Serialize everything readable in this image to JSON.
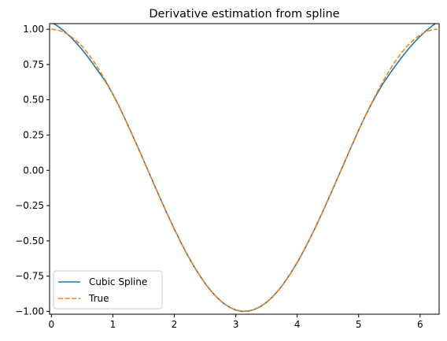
{
  "chart_data": {
    "type": "line",
    "title": "Derivative estimation from spline",
    "xlabel": "",
    "ylabel": "",
    "xlim": [
      -0.03,
      6.31
    ],
    "ylim": [
      -1.02,
      1.04
    ],
    "xticks": [
      0,
      1,
      2,
      3,
      4,
      5,
      6
    ],
    "xtick_labels": [
      "0",
      "1",
      "2",
      "3",
      "4",
      "5",
      "6"
    ],
    "yticks": [
      -1.0,
      -0.75,
      -0.5,
      -0.25,
      0.0,
      0.25,
      0.5,
      0.75,
      1.0
    ],
    "ytick_labels": [
      "−1.00",
      "−0.75",
      "−0.50",
      "−0.25",
      "0.00",
      "0.25",
      "0.50",
      "0.75",
      "1.00"
    ],
    "grid": false,
    "legend_position": "lower-left",
    "series": [
      {
        "name": "Cubic Spline",
        "color": "#1f77b4",
        "style": "solid",
        "x": [
          0.0,
          0.1,
          0.2,
          0.3,
          0.4,
          0.5,
          0.6,
          0.7,
          0.8,
          0.9,
          1.0,
          1.1,
          1.2,
          1.3,
          1.4,
          1.5,
          1.6,
          1.7,
          1.8,
          1.9,
          2.0,
          2.1,
          2.2,
          2.3,
          2.4,
          2.5,
          2.6,
          2.7,
          2.8,
          2.9,
          3.0,
          3.1,
          3.2,
          3.3,
          3.4,
          3.5,
          3.6,
          3.7,
          3.8,
          3.9,
          4.0,
          4.1,
          4.2,
          4.3,
          4.4,
          4.5,
          4.6,
          4.7,
          4.8,
          4.9,
          5.0,
          5.1,
          5.2,
          5.3,
          5.4,
          5.5,
          5.6,
          5.7,
          5.8,
          5.9,
          6.0,
          6.1,
          6.2,
          6.28
        ],
        "y": [
          1.05,
          1.023,
          0.99,
          0.95,
          0.905,
          0.855,
          0.8,
          0.74,
          0.68,
          0.617,
          0.54,
          0.455,
          0.362,
          0.268,
          0.17,
          0.071,
          -0.029,
          -0.129,
          -0.227,
          -0.323,
          -0.416,
          -0.505,
          -0.589,
          -0.666,
          -0.737,
          -0.801,
          -0.857,
          -0.904,
          -0.942,
          -0.971,
          -0.99,
          -1.0,
          -0.998,
          -0.987,
          -0.966,
          -0.936,
          -0.896,
          -0.848,
          -0.79,
          -0.725,
          -0.654,
          -0.575,
          -0.49,
          -0.401,
          -0.308,
          -0.211,
          -0.112,
          -0.012,
          0.087,
          0.186,
          0.284,
          0.378,
          0.464,
          0.544,
          0.617,
          0.682,
          0.742,
          0.8,
          0.855,
          0.905,
          0.95,
          0.99,
          1.025,
          1.05
        ]
      },
      {
        "name": "True",
        "color": "#ff7f0e",
        "style": "dashed",
        "x": [
          0.0,
          0.1,
          0.2,
          0.3,
          0.4,
          0.5,
          0.6,
          0.7,
          0.8,
          0.9,
          1.0,
          1.1,
          1.2,
          1.3,
          1.4,
          1.5,
          1.6,
          1.7,
          1.8,
          1.9,
          2.0,
          2.1,
          2.2,
          2.3,
          2.4,
          2.5,
          2.6,
          2.7,
          2.8,
          2.9,
          3.0,
          3.1,
          3.2,
          3.3,
          3.4,
          3.5,
          3.6,
          3.7,
          3.8,
          3.9,
          4.0,
          4.1,
          4.2,
          4.3,
          4.4,
          4.5,
          4.6,
          4.7,
          4.8,
          4.9,
          5.0,
          5.1,
          5.2,
          5.3,
          5.4,
          5.5,
          5.6,
          5.7,
          5.8,
          5.9,
          6.0,
          6.1,
          6.2,
          6.28
        ],
        "y": [
          1.0,
          0.995,
          0.98,
          0.955,
          0.921,
          0.878,
          0.825,
          0.765,
          0.697,
          0.622,
          0.54,
          0.454,
          0.362,
          0.267,
          0.17,
          0.071,
          -0.029,
          -0.129,
          -0.227,
          -0.323,
          -0.416,
          -0.505,
          -0.589,
          -0.666,
          -0.737,
          -0.801,
          -0.857,
          -0.904,
          -0.942,
          -0.971,
          -0.99,
          -0.999,
          -0.998,
          -0.987,
          -0.967,
          -0.936,
          -0.897,
          -0.848,
          -0.791,
          -0.726,
          -0.654,
          -0.575,
          -0.49,
          -0.401,
          -0.307,
          -0.211,
          -0.112,
          -0.012,
          0.087,
          0.187,
          0.284,
          0.378,
          0.468,
          0.554,
          0.634,
          0.709,
          0.776,
          0.835,
          0.886,
          0.927,
          0.96,
          0.983,
          0.997,
          1.0
        ]
      }
    ]
  }
}
